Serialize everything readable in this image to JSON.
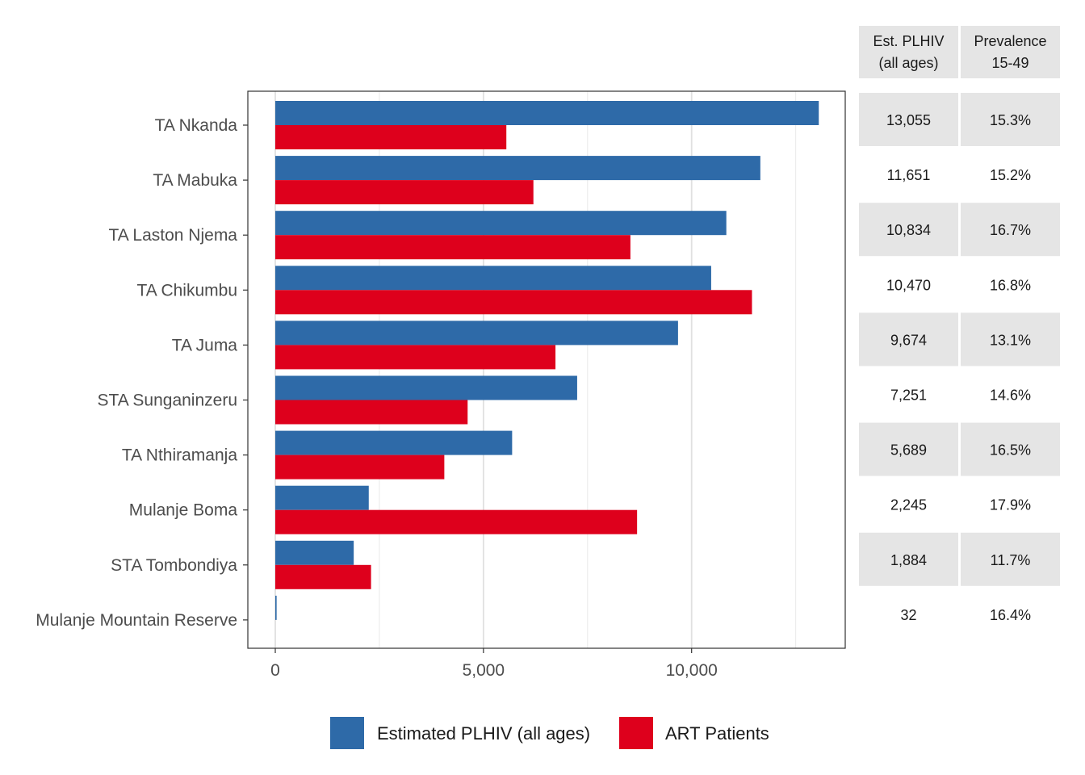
{
  "chart_data": {
    "type": "bar",
    "orientation": "horizontal",
    "categories": [
      "TA Nkanda",
      "TA Mabuka",
      "TA Laston Njema",
      "TA Chikumbu",
      "TA Juma",
      "STA Sunganinzeru",
      "TA Nthiramanja",
      "Mulanje Boma",
      "STA Tombondiya",
      "Mulanje Mountain Reserve"
    ],
    "series": [
      {
        "name": "Estimated PLHIV (all ages)",
        "color": "#2e6aa8",
        "values": [
          13055,
          11651,
          10834,
          10470,
          9674,
          7251,
          5689,
          2245,
          1884,
          32
        ]
      },
      {
        "name": "ART Patients",
        "color": "#de001c",
        "values": [
          5550,
          6200,
          8530,
          11450,
          6730,
          4620,
          4060,
          8690,
          2300,
          0
        ]
      }
    ],
    "xlim": [
      -650,
      13700
    ],
    "xticks": [
      0,
      5000,
      10000
    ],
    "xtick_labels": [
      "0",
      "5,000",
      "10,000"
    ],
    "grid": true,
    "legend_position": "bottom",
    "title": "",
    "xlabel": "",
    "ylabel": "",
    "table": {
      "headers": [
        [
          "Est. PLHIV",
          "(all ages)"
        ],
        [
          "Prevalence",
          "15-49"
        ]
      ],
      "rows": [
        [
          "13,055",
          "15.3%"
        ],
        [
          "11,651",
          "15.2%"
        ],
        [
          "10,834",
          "16.7%"
        ],
        [
          "10,470",
          "16.8%"
        ],
        [
          "9,674",
          "13.1%"
        ],
        [
          "7,251",
          "14.6%"
        ],
        [
          "5,689",
          "16.5%"
        ],
        [
          "2,245",
          "17.9%"
        ],
        [
          "1,884",
          "11.7%"
        ],
        [
          "32",
          "16.4%"
        ]
      ]
    }
  }
}
